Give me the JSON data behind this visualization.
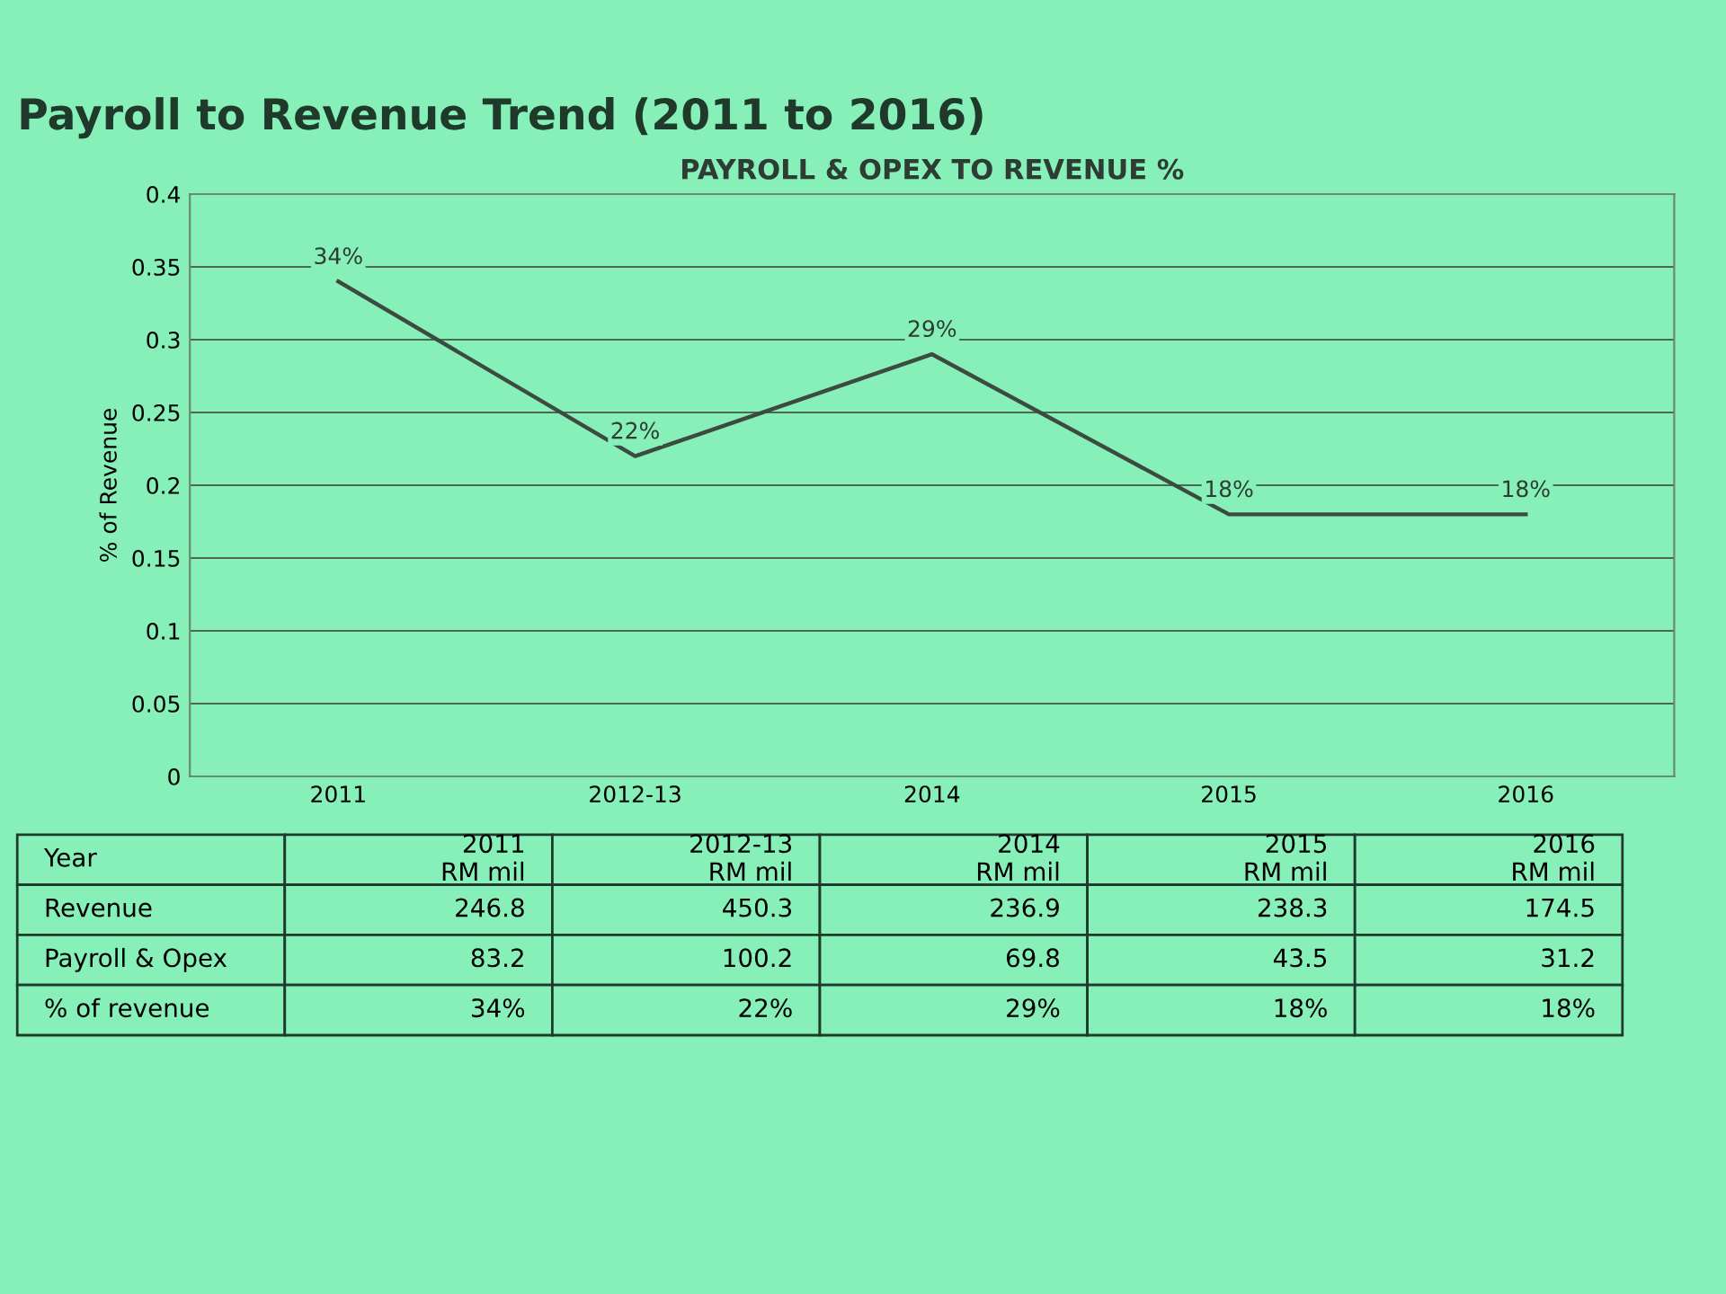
{
  "chart_data": {
    "type": "line",
    "title": "Payroll to Revenue Trend (2011 to 2016)",
    "subtitle": "PAYROLL & OPEX TO REVENUE %",
    "ylabel": "% of Revenue",
    "categories": [
      "2011",
      "2012-13",
      "2014",
      "2015",
      "2016"
    ],
    "series": [
      {
        "color": "#3c4a40",
        "values": [
          0.34,
          0.22,
          0.29,
          0.18,
          0.18
        ],
        "value_labels": [
          "34%",
          "22%",
          "29%",
          "18%",
          "18%"
        ]
      }
    ],
    "ylim": [
      0,
      0.4
    ],
    "yticks": [
      0,
      0.05,
      0.1,
      0.15,
      0.2,
      0.25,
      0.3,
      0.35,
      0.4
    ],
    "grid": "y",
    "legend": false,
    "marker": "none",
    "line_style": "solid",
    "annotations": [
      "Year",
      "2011\nRM mil",
      "2012-13\nRM mil",
      "2014\nRM mil",
      "2015\nRM mil",
      "2016\nRM mil",
      "Revenue",
      "246.8",
      "450.3",
      "236.9",
      "238.3",
      "174.5",
      "Payroll & Opex",
      "83.2",
      "100.2",
      "69.8",
      "43.5",
      "31.2",
      "% of revenue",
      "34%",
      "22%",
      "29%",
      "18%",
      "18%"
    ]
  }
}
